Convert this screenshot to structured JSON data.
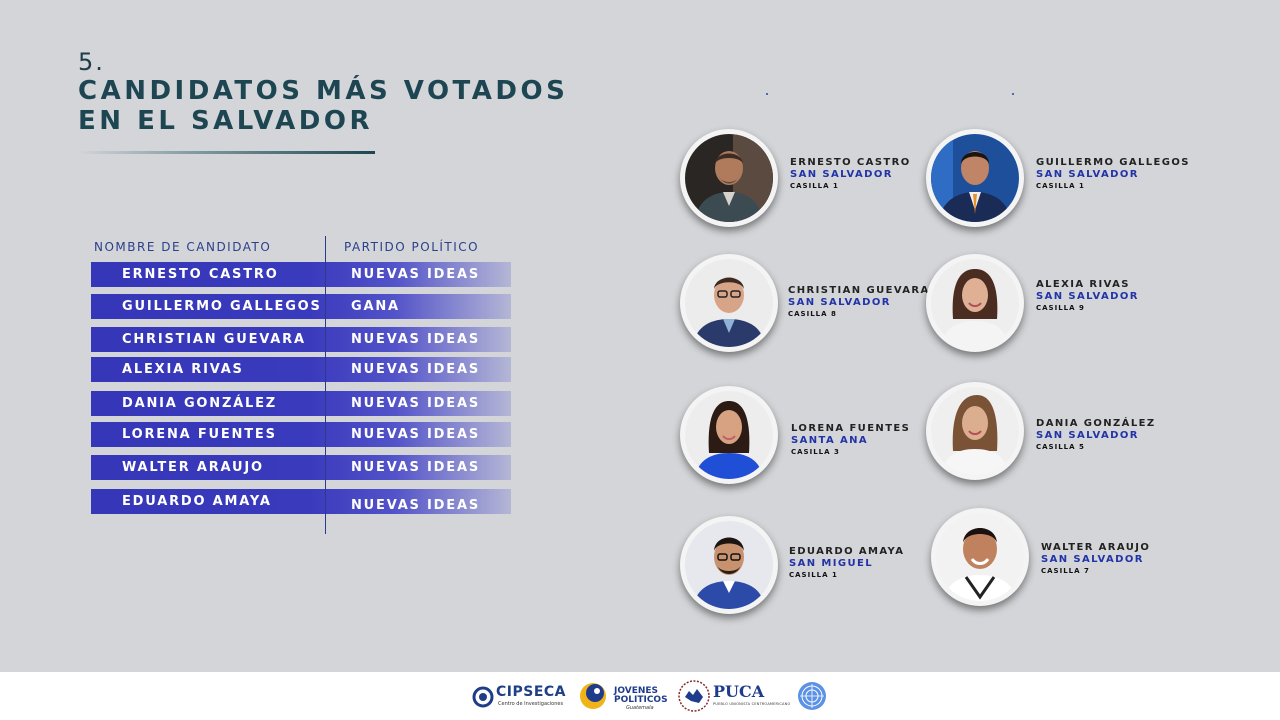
{
  "heading": {
    "number": "5.",
    "title_line1": "CANDIDATOS MÁS VOTADOS",
    "title_line2": "EN EL SALVADOR"
  },
  "table": {
    "headers": [
      "NOMBRE DE CANDIDATO",
      "PARTIDO POLÍTICO"
    ],
    "rows": [
      {
        "name": "ERNESTO CASTRO",
        "party": "NUEVAS IDEAS"
      },
      {
        "name": "GUILLERMO GALLEGOS",
        "party": "GANA"
      },
      {
        "name": "CHRISTIAN GUEVARA",
        "party": "NUEVAS IDEAS"
      },
      {
        "name": "ALEXIA RIVAS",
        "party": "NUEVAS IDEAS"
      },
      {
        "name": "DANIA GONZÁLEZ",
        "party": "NUEVAS IDEAS"
      },
      {
        "name": "LORENA FUENTES",
        "party": "NUEVAS IDEAS"
      },
      {
        "name": "WALTER ARAUJO",
        "party": "NUEVAS IDEAS"
      },
      {
        "name": "EDUARDO AMAYA",
        "party": "NUEVAS IDEAS"
      }
    ]
  },
  "candidates": [
    {
      "name": "ERNESTO CASTRO",
      "place": "SAN SALVADOR",
      "casilla": "CASILLA 1"
    },
    {
      "name": "GUILLERMO GALLEGOS",
      "place": "SAN SALVADOR",
      "casilla": "CASILLA 1"
    },
    {
      "name": "CHRISTIAN GUEVARA",
      "place": "SAN SALVADOR",
      "casilla": "CASILLA 8"
    },
    {
      "name": "ALEXIA RIVAS",
      "place": "SAN SALVADOR",
      "casilla": "CASILLA 9"
    },
    {
      "name": "LORENA FUENTES",
      "place": "SANTA ANA",
      "casilla": "CASILLA 3"
    },
    {
      "name": "DANIA GONZÁLEZ",
      "place": "SAN SALVADOR",
      "casilla": "CASILLA 5"
    },
    {
      "name": "EDUARDO AMAYA",
      "place": "SAN MIGUEL",
      "casilla": "CASILLA 1"
    },
    {
      "name": "WALTER ARAUJO",
      "place": "SAN SALVADOR",
      "casilla": "CASILLA 7"
    }
  ],
  "footer_logos": {
    "cipseca": {
      "name": "CIPSECA",
      "subtitle": "Centro de Investigaciones"
    },
    "red_mundial": {
      "line1": "JOVENES",
      "line2": "POLITICOS",
      "tag": "Guatemala"
    },
    "puca": {
      "name": "PUCA",
      "subtitle": "PUEBLO UNIONISTA CENTROAMERICANO"
    },
    "un": {
      "icon": "un-emblem-icon"
    }
  },
  "colors": {
    "background": "#d3d5d8",
    "title": "#1d4652",
    "row_fill": "#3636b8",
    "place_text": "#2233a8"
  }
}
